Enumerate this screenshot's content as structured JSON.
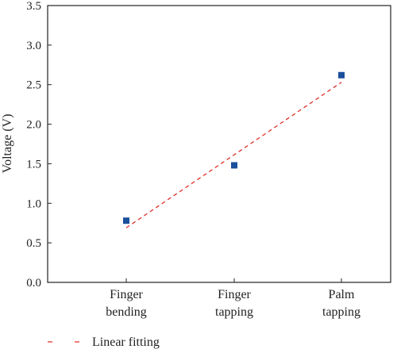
{
  "chart_data": {
    "type": "scatter",
    "categories": [
      [
        "Finger",
        "bending"
      ],
      [
        "Finger",
        "tapping"
      ],
      [
        "Palm",
        "tapping"
      ]
    ],
    "series": [
      {
        "values": [
          0.78,
          1.48,
          2.62
        ],
        "color": "#1a4f9c",
        "marker": "square"
      }
    ],
    "fit": {
      "name": "Linear fitting",
      "y_start": 0.69,
      "y_end": 2.53,
      "color": "#e0302a",
      "style": "dashed"
    },
    "ylabel": "Voltage (V)",
    "xlabel": "",
    "ylim": [
      0.0,
      3.5
    ],
    "yticks": [
      "0.0",
      "0.5",
      "1.0",
      "1.5",
      "2.0",
      "2.5",
      "3.0",
      "3.5"
    ],
    "grid": false,
    "legend_position": "bottom-left"
  }
}
